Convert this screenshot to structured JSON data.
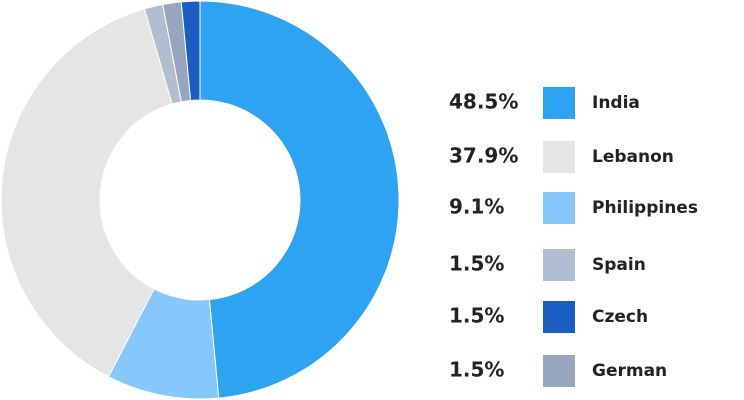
{
  "chart_data": {
    "type": "pie",
    "categories": [
      "India",
      "Lebanon",
      "Philippines",
      "Spain",
      "Czech",
      "German"
    ],
    "values": [
      48.5,
      37.9,
      9.1,
      1.5,
      1.5,
      1.5
    ],
    "value_labels": [
      "48.5%",
      "37.9%",
      "9.1%",
      "1.5%",
      "1.5%",
      "1.5%"
    ],
    "colors": [
      "#2ea3f2",
      "#e5e5e5",
      "#86c8fc",
      "#b1bdd0",
      "#1a5ec4",
      "#98a5bf"
    ]
  }
}
